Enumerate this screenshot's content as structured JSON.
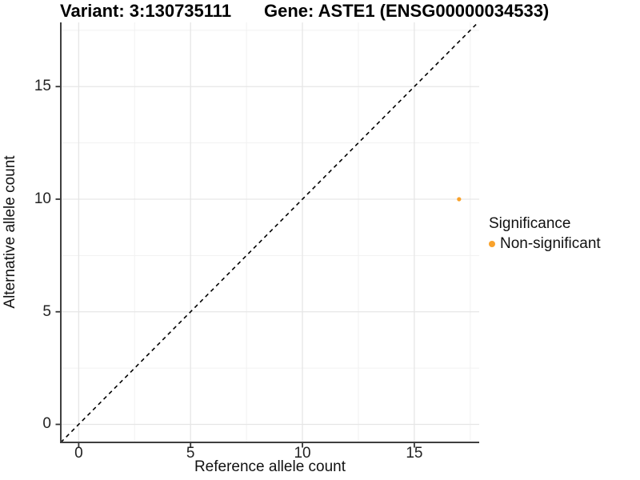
{
  "titles": {
    "variant": "Variant: 3:130735111",
    "gene": "Gene: ASTE1 (ENSG00000034533)"
  },
  "legend": {
    "title": "Significance",
    "items": [
      {
        "label": "Non-significant",
        "color": "#F9A22B"
      }
    ]
  },
  "chart_data": {
    "type": "scatter",
    "title_left": "Variant: 3:130735111",
    "title_right": "Gene: ASTE1 (ENSG00000034533)",
    "xlabel": "Reference allele count",
    "ylabel": "Alternative allele count",
    "x_ticks": [
      0,
      5,
      10,
      15
    ],
    "y_ticks": [
      0,
      5,
      10,
      15
    ],
    "x_minor_ticks": [
      2.5,
      7.5,
      12.5,
      17.5
    ],
    "y_minor_ticks": [
      2.5,
      7.5,
      12.5,
      17.5
    ],
    "xlim": [
      -0.8,
      17.9
    ],
    "ylim": [
      -0.8,
      17.85
    ],
    "grid": true,
    "legend_position": "right",
    "legend_title": "Significance",
    "points": [
      {
        "x": 17,
        "y": 10,
        "series": "Non-significant",
        "color": "#F9A22B"
      }
    ],
    "reference_line": {
      "type": "identity",
      "slope": 1,
      "intercept": 0,
      "style": "dashed",
      "color": "#000000"
    }
  }
}
